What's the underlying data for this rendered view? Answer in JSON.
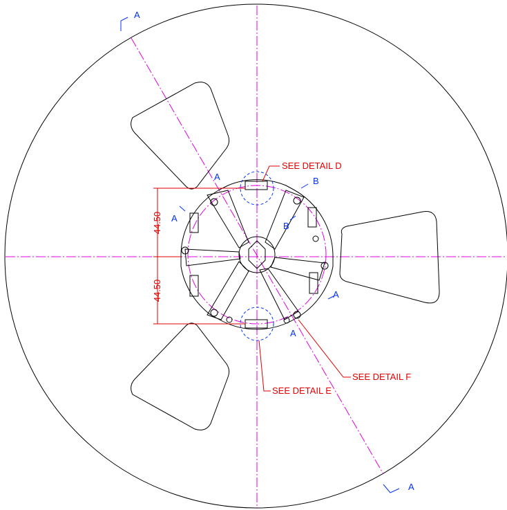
{
  "section_marks": [
    "A",
    "A"
  ],
  "view_labels": [
    "A",
    "A",
    "B",
    "B",
    "A",
    "A"
  ],
  "callouts": [
    "SEE DETAIL D",
    "SEE DETAIL E",
    "SEE DETAIL F"
  ],
  "dimensions": [
    "44.50",
    "44.50"
  ]
}
